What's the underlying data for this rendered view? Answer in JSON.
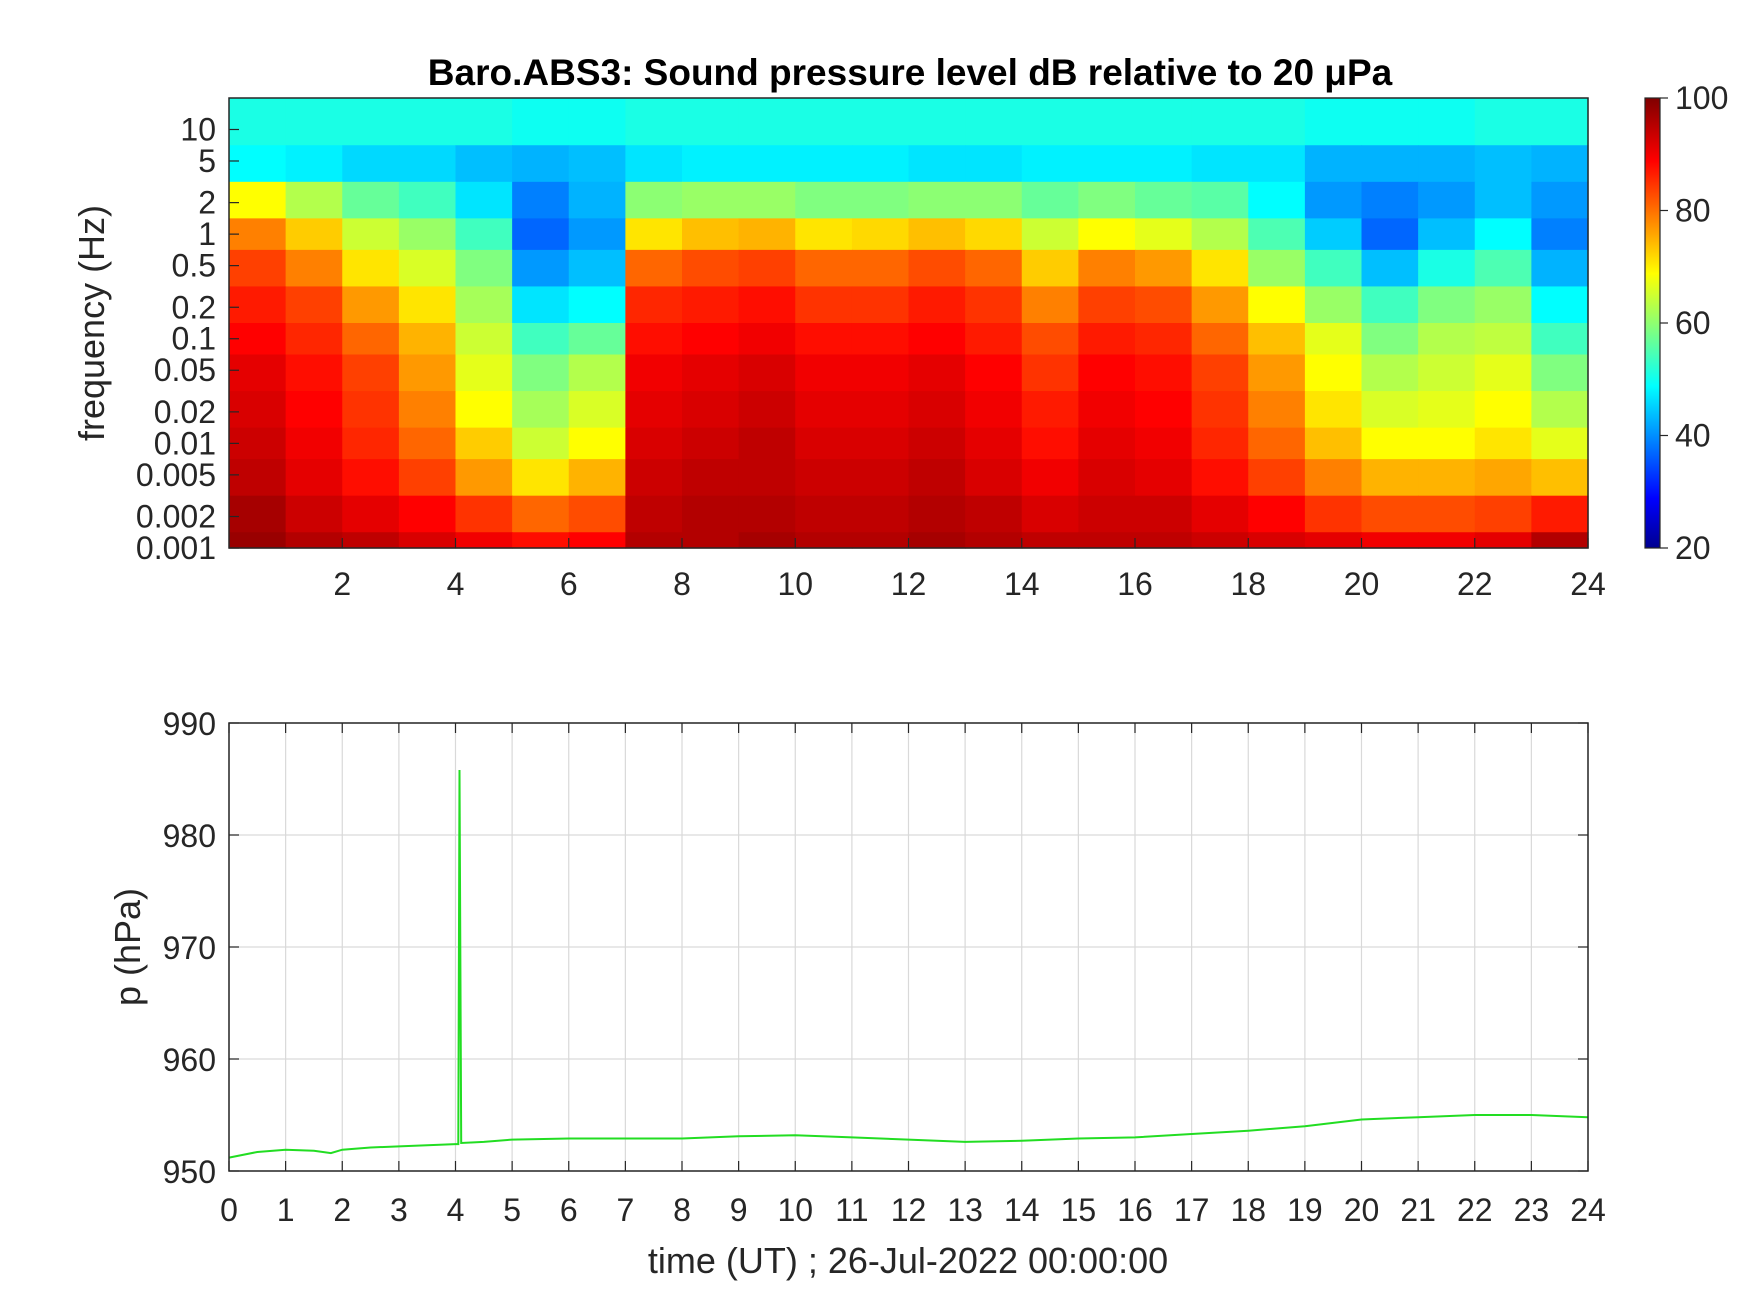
{
  "chart_data": [
    {
      "type": "heatmap",
      "title": "Baro.ABS3: Sound pressure level dB relative to 20 μPa",
      "ylabel": "frequency (Hz)",
      "xlabel": "",
      "xlim": [
        0,
        24
      ],
      "ylim_hz": [
        0.001,
        20
      ],
      "yscale": "log",
      "x_ticks": [
        "2",
        "4",
        "6",
        "8",
        "10",
        "12",
        "14",
        "16",
        "18",
        "20",
        "22",
        "24"
      ],
      "y_ticks": [
        "10",
        "5",
        "2",
        "1",
        "0.5",
        "0.2",
        "0.1",
        "0.05",
        "0.02",
        "0.01",
        "0.005",
        "0.002",
        "0.001"
      ],
      "colorbar": {
        "min": 20,
        "max": 100,
        "ticks": [
          "100",
          "80",
          "60",
          "40",
          "20"
        ],
        "colormap": "jet"
      },
      "columns_hours": [
        0,
        1,
        2,
        3,
        4,
        5,
        6,
        7,
        8,
        9,
        10,
        11,
        12,
        13,
        14,
        15,
        16,
        17,
        18,
        19,
        20,
        21,
        22,
        23
      ],
      "rows_hz": [
        10,
        5,
        2,
        1,
        0.5,
        0.2,
        0.1,
        0.05,
        0.02,
        0.01,
        0.005,
        0.002,
        0.001
      ],
      "values_db": [
        [
          52,
          52,
          52,
          52,
          52,
          51,
          51,
          52,
          52,
          52,
          52,
          52,
          52,
          52,
          52,
          52,
          52,
          52,
          52,
          51,
          51,
          51,
          52,
          52
        ],
        [
          50,
          49,
          47,
          47,
          45,
          44,
          45,
          48,
          49,
          49,
          49,
          49,
          48,
          48,
          49,
          49,
          49,
          48,
          48,
          44,
          44,
          44,
          45,
          44
        ],
        [
          70,
          64,
          58,
          55,
          48,
          40,
          44,
          61,
          62,
          62,
          60,
          60,
          61,
          61,
          58,
          60,
          58,
          57,
          50,
          42,
          40,
          42,
          45,
          42
        ],
        [
          80,
          74,
          66,
          62,
          55,
          38,
          42,
          72,
          75,
          76,
          72,
          73,
          75,
          73,
          66,
          70,
          68,
          64,
          56,
          46,
          38,
          45,
          50,
          40
        ],
        [
          85,
          80,
          72,
          67,
          60,
          42,
          45,
          82,
          84,
          85,
          82,
          82,
          84,
          82,
          74,
          80,
          78,
          72,
          62,
          55,
          45,
          52,
          56,
          44
        ],
        [
          88,
          85,
          78,
          72,
          63,
          48,
          50,
          87,
          88,
          89,
          86,
          86,
          88,
          86,
          80,
          85,
          84,
          78,
          70,
          62,
          55,
          60,
          62,
          50
        ],
        [
          90,
          87,
          82,
          76,
          66,
          55,
          58,
          89,
          90,
          91,
          89,
          89,
          90,
          88,
          84,
          88,
          87,
          82,
          75,
          68,
          60,
          64,
          65,
          55
        ],
        [
          92,
          89,
          85,
          78,
          68,
          60,
          64,
          91,
          92,
          93,
          91,
          91,
          92,
          90,
          86,
          90,
          89,
          85,
          78,
          70,
          64,
          66,
          68,
          60
        ],
        [
          93,
          90,
          86,
          80,
          70,
          63,
          67,
          92,
          93,
          94,
          92,
          92,
          93,
          91,
          88,
          91,
          90,
          86,
          80,
          72,
          67,
          68,
          70,
          64
        ],
        [
          94,
          91,
          87,
          82,
          74,
          66,
          70,
          93,
          94,
          95,
          93,
          93,
          94,
          92,
          89,
          92,
          91,
          87,
          82,
          75,
          70,
          70,
          72,
          68
        ],
        [
          95,
          92,
          89,
          85,
          78,
          72,
          76,
          94,
          95,
          95,
          94,
          94,
          95,
          93,
          91,
          93,
          92,
          89,
          85,
          80,
          76,
          76,
          77,
          75
        ],
        [
          97,
          94,
          92,
          90,
          86,
          82,
          84,
          95,
          96,
          96,
          95,
          95,
          96,
          95,
          93,
          94,
          94,
          92,
          90,
          86,
          84,
          84,
          85,
          88
        ],
        [
          98,
          96,
          95,
          93,
          91,
          89,
          90,
          96,
          96,
          97,
          96,
          96,
          97,
          96,
          95,
          95,
          95,
          94,
          93,
          92,
          91,
          91,
          92,
          96
        ]
      ]
    },
    {
      "type": "line",
      "title": "",
      "xlabel": "time (UT) ; 26-Jul-2022 00:00:00",
      "ylabel": "p (hPa)",
      "xlim": [
        0,
        24
      ],
      "ylim": [
        950,
        990
      ],
      "grid": true,
      "x_ticks": [
        "0",
        "1",
        "2",
        "3",
        "4",
        "5",
        "6",
        "7",
        "8",
        "9",
        "10",
        "11",
        "12",
        "13",
        "14",
        "15",
        "16",
        "17",
        "18",
        "19",
        "20",
        "21",
        "22",
        "23",
        "24"
      ],
      "y_ticks": [
        "990",
        "980",
        "970",
        "960",
        "950"
      ],
      "line_color": "#22dd22",
      "series": [
        {
          "x": [
            0,
            0.5,
            1,
            1.5,
            1.8,
            2,
            2.5,
            3,
            3.5,
            4,
            4.05,
            4.07,
            4.1,
            4.5,
            5,
            6,
            7,
            8,
            9,
            10,
            11,
            12,
            13,
            14,
            15,
            16,
            17,
            18,
            19,
            20,
            21,
            22,
            23,
            24
          ],
          "y": [
            951.2,
            951.7,
            951.9,
            951.8,
            951.6,
            951.9,
            952.1,
            952.2,
            952.3,
            952.4,
            952.4,
            985.8,
            952.5,
            952.6,
            952.8,
            952.9,
            952.9,
            952.9,
            953.1,
            953.2,
            953.0,
            952.8,
            952.6,
            952.7,
            952.9,
            953.0,
            953.3,
            953.6,
            954.0,
            954.6,
            954.8,
            955.0,
            955.0,
            954.8
          ]
        }
      ]
    }
  ]
}
